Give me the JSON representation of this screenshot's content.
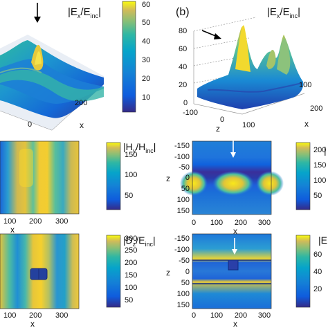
{
  "figure": {
    "panel_a": {
      "title": "|E",
      "title_sub": "x",
      "title_mid": "/E",
      "title_sub2": "inc",
      "title_end": "|",
      "colorbar_ticks": [
        "60",
        "50",
        "40",
        "30",
        "20",
        "10"
      ],
      "x_ticks": [
        "200",
        "0"
      ],
      "xlabel": "x"
    },
    "panel_b": {
      "letter": "(b)",
      "title": "|E",
      "title_sub": "x",
      "title_mid": "/E",
      "title_sub2": "inc",
      "title_end": "|",
      "z_ticks": [
        "80",
        "60",
        "40",
        "20",
        "0"
      ],
      "y_ticks": [
        "-100",
        "0",
        "100"
      ],
      "x_ticks": [
        "200",
        "100"
      ],
      "ylabel": "z",
      "xlabel": "x"
    },
    "panel_c": {
      "title": "|H",
      "title_sub": "y",
      "title_mid": "/H",
      "title_sub2": "inc",
      "title_end": "|",
      "colorbar_ticks": [
        "150",
        "100",
        "50"
      ],
      "x_ticks": [
        "100",
        "200",
        "300"
      ],
      "xlabel": "x"
    },
    "panel_d": {
      "title_cut": "|",
      "colorbar_ticks": [
        "200",
        "150",
        "100",
        "50"
      ],
      "y_ticks": [
        "-150",
        "-100",
        "-50",
        "0",
        "50",
        "100",
        "150"
      ],
      "x_ticks": [
        "0",
        "100",
        "200",
        "300"
      ],
      "ylabel": "z",
      "xlabel": "x"
    },
    "panel_e": {
      "title": "|D",
      "title_sub": "z",
      "title_mid": "/E",
      "title_sub2": "inc",
      "title_end": "|",
      "colorbar_ticks": [
        "300",
        "250",
        "200",
        "150",
        "100",
        "50"
      ],
      "x_ticks": [
        "100",
        "200",
        "300"
      ],
      "xlabel": "x"
    },
    "panel_f": {
      "title_cut": "|E",
      "colorbar_ticks": [
        "60",
        "40",
        "20"
      ],
      "y_ticks": [
        "-150",
        "-100",
        "-50",
        "0",
        "50",
        "100",
        "150"
      ],
      "x_ticks": [
        "0",
        "100",
        "200",
        "300"
      ],
      "ylabel": "z",
      "xlabel": "x"
    },
    "colors": {
      "parula_dark": "#352a87",
      "parula_blue": "#0f5cdd",
      "parula_teal": "#12bea8",
      "parula_yellow": "#f9fb0e"
    }
  }
}
